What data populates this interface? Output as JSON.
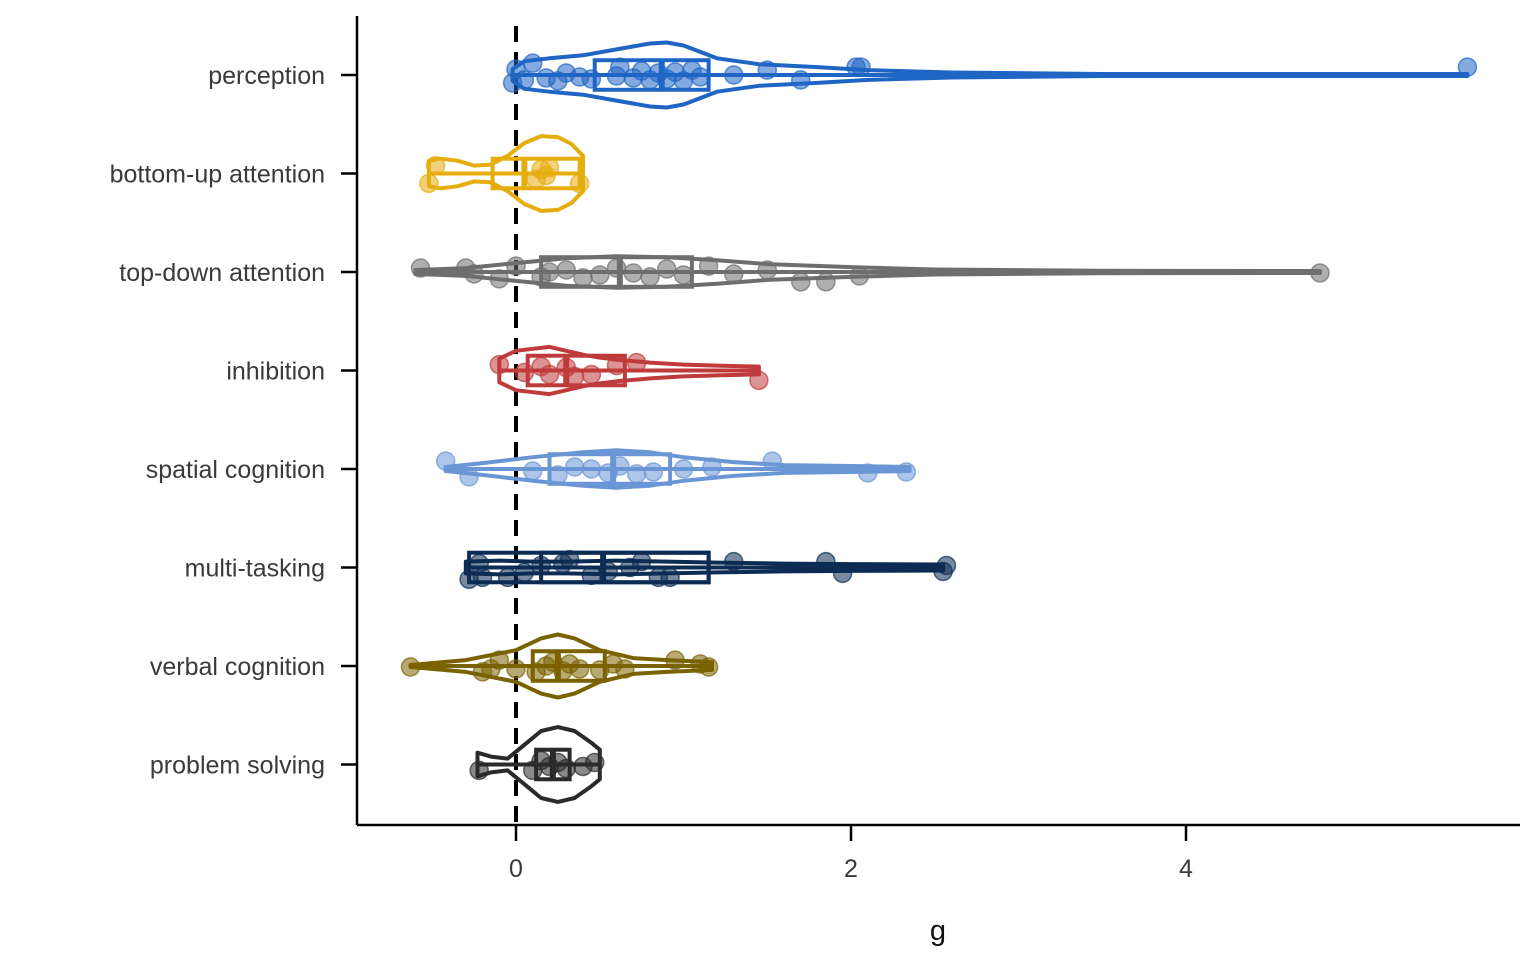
{
  "chart_data": {
    "type": "violin-box-jitter",
    "xlabel": "g",
    "ylabel": "",
    "xlim": [
      -0.95,
      5.95
    ],
    "x_ticks": [
      0,
      2,
      4
    ],
    "x_tick_labels": [
      "0",
      "2",
      "4"
    ],
    "reference_line": {
      "x": 0,
      "style": "dashed",
      "color": "#000000"
    },
    "grid": false,
    "legend": "none",
    "categories": [
      "perception",
      "bottom-up attention",
      "top-down attention",
      "inhibition",
      "spatial cognition",
      "multi-tasking",
      "verbal cognition",
      "problem solving"
    ],
    "series": [
      {
        "category": "perception",
        "color": "#1F65C4",
        "box": {
          "q1": 0.47,
          "median": 0.87,
          "q3": 1.15
        },
        "violin": {
          "min": -0.02,
          "max": 5.68,
          "profile": [
            [
              -0.02,
              0.06
            ],
            [
              0.05,
              0.14
            ],
            [
              0.2,
              0.17
            ],
            [
              0.4,
              0.2
            ],
            [
              0.6,
              0.26
            ],
            [
              0.8,
              0.32
            ],
            [
              0.9,
              0.33
            ],
            [
              1.0,
              0.3
            ],
            [
              1.2,
              0.17
            ],
            [
              1.45,
              0.11
            ],
            [
              1.8,
              0.08
            ],
            [
              2.1,
              0.05
            ],
            [
              2.6,
              0.025
            ],
            [
              3.5,
              0.01
            ],
            [
              5.68,
              0.01
            ]
          ]
        },
        "points": [
          [
            -0.02,
            0.08
          ],
          [
            0.0,
            -0.06
          ],
          [
            0.05,
            0.05
          ],
          [
            0.1,
            -0.12
          ],
          [
            0.18,
            0.03
          ],
          [
            0.25,
            0.06
          ],
          [
            0.3,
            -0.02
          ],
          [
            0.38,
            0.02
          ],
          [
            0.45,
            0.04
          ],
          [
            0.6,
            0.01
          ],
          [
            0.62,
            -0.08
          ],
          [
            0.7,
            0.03
          ],
          [
            0.75,
            -0.04
          ],
          [
            0.8,
            0.05
          ],
          [
            0.85,
            -0.02
          ],
          [
            0.9,
            0.04
          ],
          [
            0.95,
            -0.03
          ],
          [
            1.0,
            0.06
          ],
          [
            1.05,
            -0.05
          ],
          [
            1.1,
            0.02
          ],
          [
            1.3,
            0.0
          ],
          [
            1.5,
            -0.05
          ],
          [
            1.7,
            0.05
          ],
          [
            2.03,
            -0.08
          ],
          [
            2.06,
            -0.08
          ],
          [
            5.68,
            -0.08
          ]
        ]
      },
      {
        "category": "bottom-up attention",
        "color": "#E6AD0E",
        "box": {
          "q1": -0.14,
          "median": 0.05,
          "q3": 0.38
        },
        "violin": {
          "min": -0.52,
          "max": 0.4,
          "profile": [
            [
              -0.52,
              0.13
            ],
            [
              -0.45,
              0.15
            ],
            [
              -0.35,
              0.13
            ],
            [
              -0.25,
              0.08
            ],
            [
              -0.15,
              0.09
            ],
            [
              -0.05,
              0.18
            ],
            [
              0.05,
              0.31
            ],
            [
              0.15,
              0.38
            ],
            [
              0.25,
              0.37
            ],
            [
              0.33,
              0.3
            ],
            [
              0.4,
              0.18
            ]
          ]
        },
        "points": [
          [
            -0.52,
            0.1
          ],
          [
            -0.48,
            -0.08
          ],
          [
            0.12,
            0.06
          ],
          [
            0.15,
            -0.04
          ],
          [
            0.18,
            0.02
          ],
          [
            0.2,
            -0.06
          ],
          [
            0.38,
            0.1
          ]
        ]
      },
      {
        "category": "top-down attention",
        "color": "#6E6E6E",
        "box": {
          "q1": 0.15,
          "median": 0.62,
          "q3": 1.05
        },
        "violin": {
          "min": -0.6,
          "max": 4.8,
          "profile": [
            [
              -0.6,
              0.02
            ],
            [
              -0.3,
              0.04
            ],
            [
              0.0,
              0.09
            ],
            [
              0.3,
              0.14
            ],
            [
              0.6,
              0.16
            ],
            [
              0.9,
              0.15
            ],
            [
              1.2,
              0.12
            ],
            [
              1.5,
              0.08
            ],
            [
              2.0,
              0.05
            ],
            [
              2.5,
              0.025
            ],
            [
              3.5,
              0.012
            ],
            [
              4.8,
              0.01
            ]
          ]
        },
        "points": [
          [
            -0.57,
            -0.04
          ],
          [
            -0.3,
            -0.04
          ],
          [
            -0.25,
            0.02
          ],
          [
            -0.1,
            0.07
          ],
          [
            0.0,
            -0.06
          ],
          [
            0.15,
            0.05
          ],
          [
            0.2,
            0.0
          ],
          [
            0.3,
            -0.02
          ],
          [
            0.4,
            0.06
          ],
          [
            0.5,
            0.03
          ],
          [
            0.6,
            -0.04
          ],
          [
            0.7,
            0.01
          ],
          [
            0.8,
            0.05
          ],
          [
            0.9,
            -0.03
          ],
          [
            1.0,
            0.03
          ],
          [
            1.15,
            -0.06
          ],
          [
            1.3,
            0.02
          ],
          [
            1.5,
            -0.02
          ],
          [
            1.7,
            0.1
          ],
          [
            1.85,
            0.1
          ],
          [
            2.05,
            0.04
          ],
          [
            4.8,
            0.01
          ]
        ]
      },
      {
        "category": "inhibition",
        "color": "#BF3A3A",
        "box": {
          "q1": 0.07,
          "median": 0.3,
          "q3": 0.65
        },
        "violin": {
          "min": -0.1,
          "max": 1.45,
          "profile": [
            [
              -0.1,
              0.12
            ],
            [
              0.0,
              0.2
            ],
            [
              0.1,
              0.22
            ],
            [
              0.2,
              0.24
            ],
            [
              0.3,
              0.2
            ],
            [
              0.4,
              0.16
            ],
            [
              0.5,
              0.13
            ],
            [
              0.6,
              0.11
            ],
            [
              0.8,
              0.08
            ],
            [
              1.0,
              0.06
            ],
            [
              1.2,
              0.05
            ],
            [
              1.45,
              0.04
            ]
          ]
        },
        "points": [
          [
            -0.1,
            -0.06
          ],
          [
            0.05,
            0.02
          ],
          [
            0.15,
            -0.04
          ],
          [
            0.2,
            0.04
          ],
          [
            0.3,
            -0.03
          ],
          [
            0.35,
            0.06
          ],
          [
            0.45,
            0.04
          ],
          [
            0.6,
            -0.05
          ],
          [
            0.72,
            -0.08
          ],
          [
            1.45,
            0.1
          ]
        ]
      },
      {
        "category": "spatial cognition",
        "color": "#6A96D6",
        "box": {
          "q1": 0.2,
          "median": 0.58,
          "q3": 0.92
        },
        "violin": {
          "min": -0.42,
          "max": 2.35,
          "profile": [
            [
              -0.42,
              0.02
            ],
            [
              -0.2,
              0.06
            ],
            [
              0.1,
              0.12
            ],
            [
              0.4,
              0.17
            ],
            [
              0.6,
              0.19
            ],
            [
              0.8,
              0.17
            ],
            [
              1.0,
              0.12
            ],
            [
              1.3,
              0.07
            ],
            [
              1.6,
              0.04
            ],
            [
              2.0,
              0.03
            ],
            [
              2.35,
              0.02
            ]
          ]
        },
        "points": [
          [
            -0.42,
            -0.08
          ],
          [
            -0.28,
            0.08
          ],
          [
            0.1,
            0.02
          ],
          [
            0.25,
            0.06
          ],
          [
            0.35,
            -0.02
          ],
          [
            0.45,
            0.0
          ],
          [
            0.55,
            0.04
          ],
          [
            0.62,
            -0.03
          ],
          [
            0.72,
            0.05
          ],
          [
            0.82,
            0.03
          ],
          [
            1.0,
            0.0
          ],
          [
            1.17,
            -0.02
          ],
          [
            1.53,
            -0.08
          ],
          [
            2.1,
            0.04
          ],
          [
            2.33,
            0.03
          ]
        ]
      },
      {
        "category": "multi-tasking",
        "color": "#0C2C54",
        "box": {
          "q1": -0.28,
          "median": 0.52,
          "q3": 1.15
        },
        "box_inner": {
          "q1": 0.15,
          "q3": 1.15
        },
        "violin": {
          "min": -0.3,
          "max": 2.55,
          "profile": [
            [
              -0.3,
              0.06
            ],
            [
              -0.1,
              0.07
            ],
            [
              0.1,
              0.06
            ],
            [
              0.3,
              0.06
            ],
            [
              0.6,
              0.07
            ],
            [
              0.9,
              0.06
            ],
            [
              1.2,
              0.05
            ],
            [
              1.6,
              0.04
            ],
            [
              2.0,
              0.035
            ],
            [
              2.55,
              0.03
            ]
          ]
        },
        "points": [
          [
            -0.28,
            0.12
          ],
          [
            -0.22,
            -0.04
          ],
          [
            -0.2,
            0.1
          ],
          [
            -0.05,
            0.1
          ],
          [
            0.05,
            0.05
          ],
          [
            0.15,
            -0.02
          ],
          [
            0.28,
            -0.04
          ],
          [
            0.32,
            -0.08
          ],
          [
            0.45,
            0.08
          ],
          [
            0.55,
            0.04
          ],
          [
            0.68,
            0.0
          ],
          [
            0.75,
            -0.06
          ],
          [
            0.85,
            0.1
          ],
          [
            0.92,
            0.1
          ],
          [
            1.3,
            -0.06
          ],
          [
            1.85,
            -0.06
          ],
          [
            1.95,
            0.06
          ],
          [
            2.55,
            0.04
          ],
          [
            2.57,
            -0.02
          ]
        ]
      },
      {
        "category": "verbal cognition",
        "color": "#7A6200",
        "box": {
          "q1": 0.1,
          "median": 0.25,
          "q3": 0.53
        },
        "violin": {
          "min": -0.63,
          "max": 1.17,
          "profile": [
            [
              -0.63,
              0.01
            ],
            [
              -0.3,
              0.06
            ],
            [
              0.0,
              0.16
            ],
            [
              0.15,
              0.28
            ],
            [
              0.25,
              0.32
            ],
            [
              0.35,
              0.28
            ],
            [
              0.5,
              0.16
            ],
            [
              0.7,
              0.08
            ],
            [
              0.9,
              0.06
            ],
            [
              1.17,
              0.04
            ]
          ]
        },
        "points": [
          [
            -0.63,
            0.01
          ],
          [
            -0.2,
            0.06
          ],
          [
            -0.15,
            0.03
          ],
          [
            -0.1,
            -0.06
          ],
          [
            0.0,
            0.03
          ],
          [
            0.12,
            0.06
          ],
          [
            0.18,
            0.0
          ],
          [
            0.22,
            -0.04
          ],
          [
            0.28,
            0.05
          ],
          [
            0.32,
            -0.02
          ],
          [
            0.38,
            0.03
          ],
          [
            0.5,
            0.04
          ],
          [
            0.58,
            -0.02
          ],
          [
            0.65,
            0.03
          ],
          [
            0.95,
            -0.06
          ],
          [
            1.1,
            -0.02
          ],
          [
            1.15,
            0.01
          ]
        ]
      },
      {
        "category": "problem solving",
        "color": "#2A2A2A",
        "box": {
          "q1": 0.12,
          "median": 0.22,
          "q3": 0.32
        },
        "violin": {
          "min": -0.23,
          "max": 0.5,
          "profile": [
            [
              -0.23,
              0.12
            ],
            [
              -0.15,
              0.08
            ],
            [
              -0.05,
              0.06
            ],
            [
              0.05,
              0.2
            ],
            [
              0.15,
              0.34
            ],
            [
              0.25,
              0.38
            ],
            [
              0.35,
              0.34
            ],
            [
              0.45,
              0.22
            ],
            [
              0.5,
              0.15
            ]
          ]
        },
        "points": [
          [
            -0.22,
            0.06
          ],
          [
            0.1,
            0.06
          ],
          [
            0.15,
            -0.04
          ],
          [
            0.2,
            0.02
          ],
          [
            0.25,
            -0.02
          ],
          [
            0.3,
            0.04
          ],
          [
            0.4,
            0.02
          ],
          [
            0.47,
            -0.02
          ]
        ]
      }
    ]
  }
}
